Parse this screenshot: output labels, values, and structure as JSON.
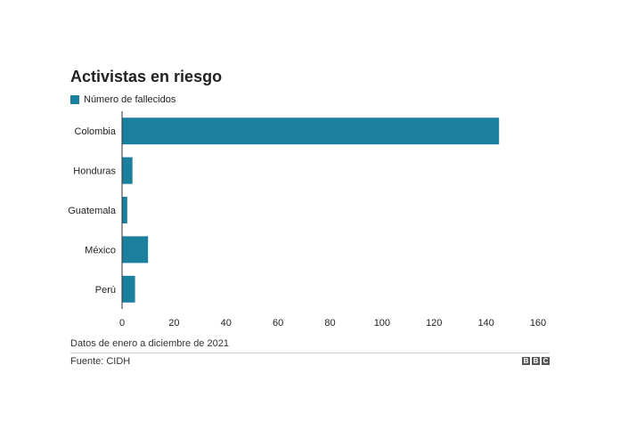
{
  "chart_data": {
    "type": "bar",
    "orientation": "horizontal",
    "title": "Activistas en riesgo",
    "categories": [
      "Colombia",
      "Honduras",
      "Guatemala",
      "México",
      "Perú"
    ],
    "series": [
      {
        "name": "Número de fallecidos",
        "values": [
          145,
          4,
          2,
          10,
          5
        ]
      }
    ],
    "xlim": [
      0,
      160
    ],
    "xticks": [
      0,
      20,
      40,
      60,
      80,
      100,
      120,
      140,
      160
    ],
    "grid": false,
    "legend": "top-left",
    "bar_color": "#1b7f9e"
  },
  "note": "Datos de enero a diciembre de 2021",
  "source": "Fuente: CIDH",
  "logo": "BBC"
}
